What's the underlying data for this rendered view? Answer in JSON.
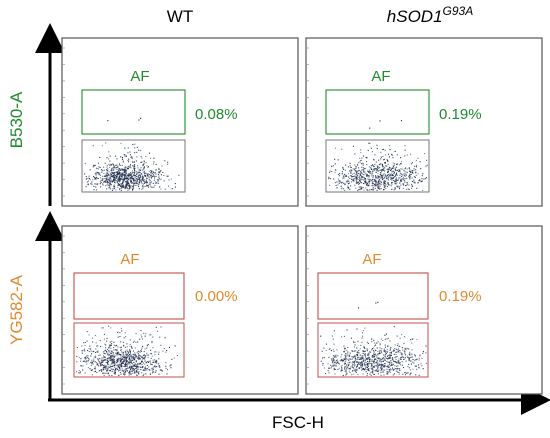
{
  "columns": [
    {
      "label": "WT"
    },
    {
      "label": "hSOD1",
      "superscript": "G93A"
    }
  ],
  "rows": [
    {
      "axis_label": "B530-A",
      "color": "#1f8a2e"
    },
    {
      "axis_label": "YG582-A",
      "color": "#e08a30"
    }
  ],
  "x_axis_label": "FSC-H",
  "colors": {
    "dots": "#1c2a4a",
    "panel_border": "#555555",
    "axis": "#000000",
    "lower_gate": "#777777"
  },
  "chart_data": {
    "type": "scatter",
    "title": "",
    "xlabel": "FSC-H",
    "panels": [
      {
        "row": "B530-A",
        "column": "WT",
        "gate_label": "AF",
        "gate_percent": "0.08%",
        "gate_color": "#1f8a2e",
        "event_cluster": "dense, low B530-A, centred in lower left of the plot"
      },
      {
        "row": "B530-A",
        "column": "hSOD1G93A",
        "gate_label": "AF",
        "gate_percent": "0.19%",
        "gate_color": "#1f8a2e",
        "event_cluster": "dense, low B530-A, spread across centre"
      },
      {
        "row": "YG582-A",
        "column": "WT",
        "gate_label": "AF",
        "gate_percent": "0.00%",
        "gate_color": "#c0504d",
        "event_cluster": "dense, low YG582-A, left-centred"
      },
      {
        "row": "YG582-A",
        "column": "hSOD1G93A",
        "gate_label": "AF",
        "gate_percent": "0.19%",
        "gate_color": "#c0504d",
        "event_cluster": "dense, low YG582-A, spread across centre"
      }
    ]
  }
}
